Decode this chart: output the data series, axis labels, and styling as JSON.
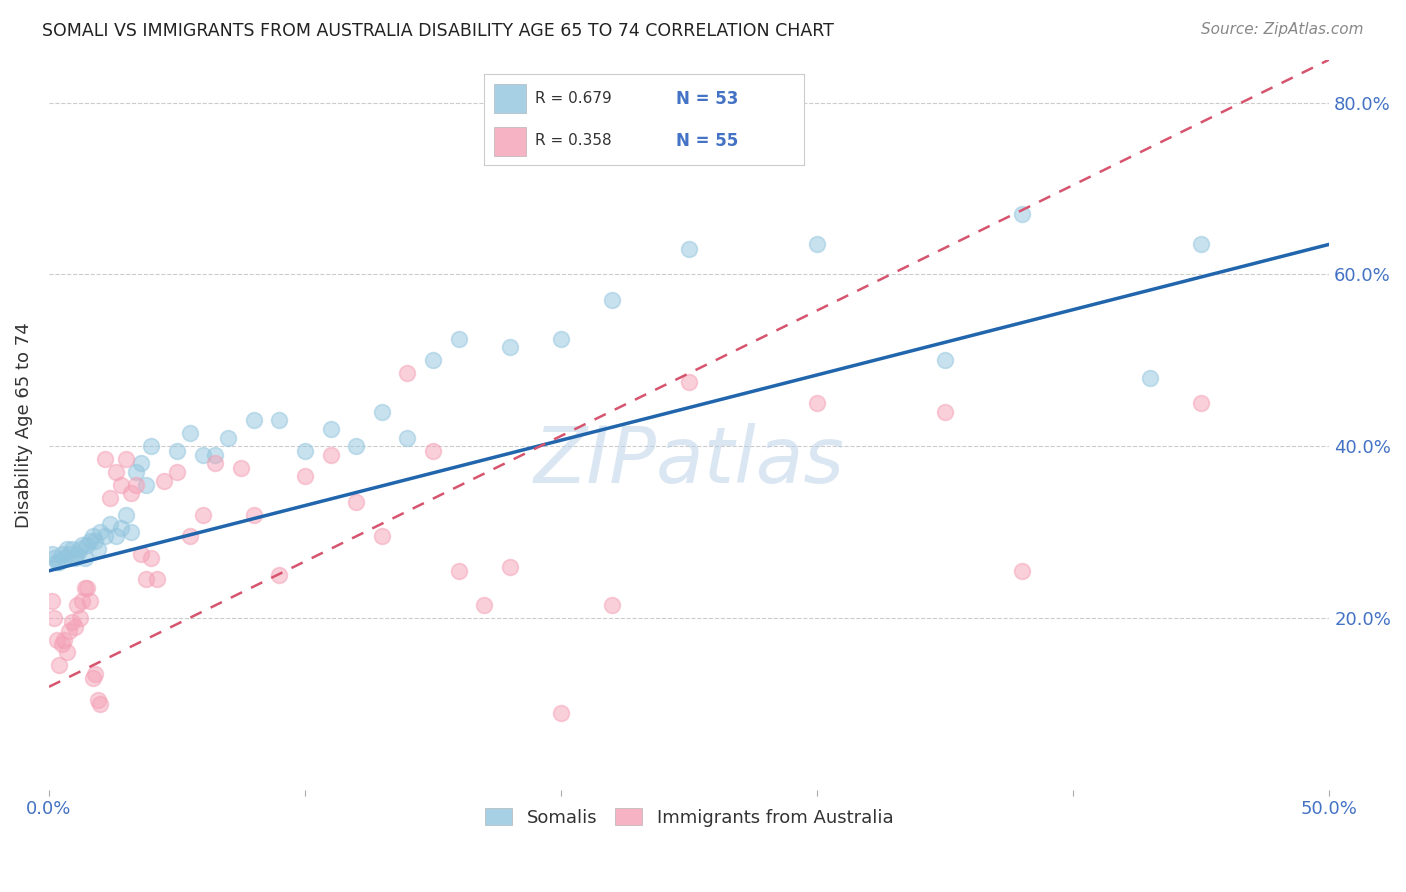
{
  "title": "SOMALI VS IMMIGRANTS FROM AUSTRALIA DISABILITY AGE 65 TO 74 CORRELATION CHART",
  "source": "Source: ZipAtlas.com",
  "ylabel": "Disability Age 65 to 74",
  "xlim": [
    0.0,
    0.5
  ],
  "ylim": [
    0.0,
    0.85
  ],
  "x_tick_positions": [
    0.0,
    0.1,
    0.2,
    0.3,
    0.4,
    0.5
  ],
  "x_tick_labels": [
    "0.0%",
    "",
    "",
    "",
    "",
    "50.0%"
  ],
  "y_tick_positions": [
    0.0,
    0.2,
    0.4,
    0.6,
    0.8
  ],
  "y_tick_labels": [
    "",
    "20.0%",
    "40.0%",
    "60.0%",
    "80.0%"
  ],
  "somali_R": 0.679,
  "somali_N": 53,
  "australia_R": 0.358,
  "australia_N": 55,
  "somali_color": "#92c5de",
  "australia_color": "#f4a0b5",
  "somali_line_color": "#2166ac",
  "australia_line_color": "#d6546e",
  "watermark": "ZIPatlas",
  "legend_label_somali": "Somalis",
  "legend_label_australia": "Immigrants from Australia",
  "somali_x": [
    0.001,
    0.002,
    0.003,
    0.004,
    0.005,
    0.006,
    0.007,
    0.008,
    0.009,
    0.01,
    0.011,
    0.012,
    0.013,
    0.014,
    0.015,
    0.016,
    0.017,
    0.018,
    0.019,
    0.02,
    0.022,
    0.024,
    0.026,
    0.028,
    0.03,
    0.032,
    0.034,
    0.036,
    0.038,
    0.04,
    0.05,
    0.055,
    0.06,
    0.065,
    0.07,
    0.08,
    0.09,
    0.1,
    0.11,
    0.12,
    0.13,
    0.14,
    0.15,
    0.16,
    0.18,
    0.2,
    0.22,
    0.25,
    0.3,
    0.35,
    0.38,
    0.43,
    0.45
  ],
  "somali_y": [
    0.275,
    0.27,
    0.265,
    0.265,
    0.275,
    0.27,
    0.28,
    0.275,
    0.28,
    0.27,
    0.275,
    0.28,
    0.285,
    0.27,
    0.285,
    0.29,
    0.295,
    0.29,
    0.28,
    0.3,
    0.295,
    0.31,
    0.295,
    0.305,
    0.32,
    0.3,
    0.37,
    0.38,
    0.355,
    0.4,
    0.395,
    0.415,
    0.39,
    0.39,
    0.41,
    0.43,
    0.43,
    0.395,
    0.42,
    0.4,
    0.44,
    0.41,
    0.5,
    0.525,
    0.515,
    0.525,
    0.57,
    0.63,
    0.635,
    0.5,
    0.67,
    0.48,
    0.635
  ],
  "australia_x": [
    0.001,
    0.002,
    0.003,
    0.004,
    0.005,
    0.006,
    0.007,
    0.008,
    0.009,
    0.01,
    0.011,
    0.012,
    0.013,
    0.014,
    0.015,
    0.016,
    0.017,
    0.018,
    0.019,
    0.02,
    0.022,
    0.024,
    0.026,
    0.028,
    0.03,
    0.032,
    0.034,
    0.036,
    0.038,
    0.04,
    0.042,
    0.045,
    0.05,
    0.055,
    0.06,
    0.065,
    0.075,
    0.08,
    0.09,
    0.1,
    0.11,
    0.12,
    0.13,
    0.14,
    0.15,
    0.16,
    0.17,
    0.18,
    0.2,
    0.22,
    0.25,
    0.3,
    0.35,
    0.38,
    0.45
  ],
  "australia_y": [
    0.22,
    0.2,
    0.175,
    0.145,
    0.17,
    0.175,
    0.16,
    0.185,
    0.195,
    0.19,
    0.215,
    0.2,
    0.22,
    0.235,
    0.235,
    0.22,
    0.13,
    0.135,
    0.105,
    0.1,
    0.385,
    0.34,
    0.37,
    0.355,
    0.385,
    0.345,
    0.355,
    0.275,
    0.245,
    0.27,
    0.245,
    0.36,
    0.37,
    0.295,
    0.32,
    0.38,
    0.375,
    0.32,
    0.25,
    0.365,
    0.39,
    0.335,
    0.295,
    0.485,
    0.395,
    0.255,
    0.215,
    0.26,
    0.09,
    0.215,
    0.475,
    0.45,
    0.44,
    0.255,
    0.45
  ],
  "somali_line_x0": 0.0,
  "somali_line_y0": 0.255,
  "somali_line_x1": 0.5,
  "somali_line_y1": 0.635,
  "australia_line_x0": 0.0,
  "australia_line_y0": 0.12,
  "australia_line_x1": 0.5,
  "australia_line_y1": 0.85
}
